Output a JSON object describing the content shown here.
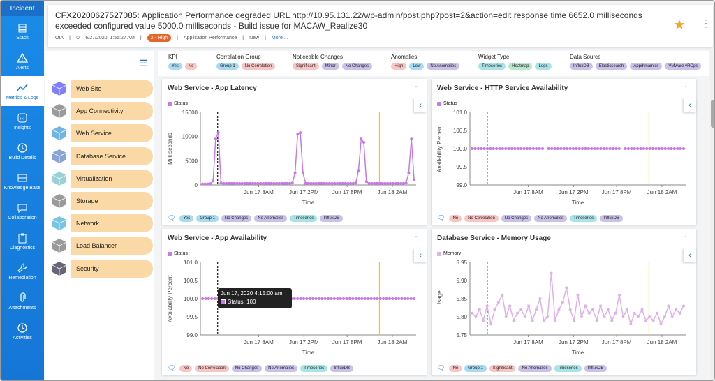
{
  "sidebar": {
    "header": "Incident",
    "items": [
      {
        "label": "Stack",
        "icon": "stack-icon",
        "active": false
      },
      {
        "label": "Alerts",
        "icon": "alert-icon",
        "active": false
      },
      {
        "label": "Metrics & Logs",
        "icon": "metrics-icon",
        "active": true
      },
      {
        "label": "Insights",
        "icon": "insights-icon",
        "active": false
      },
      {
        "label": "Build Details",
        "icon": "history-icon",
        "active": false
      },
      {
        "label": "Knowledge Base",
        "icon": "knowledge-icon",
        "active": false
      },
      {
        "label": "Collaboration",
        "icon": "chat-icon",
        "active": false
      },
      {
        "label": "Diagnostics",
        "icon": "clipboard-icon",
        "active": false
      },
      {
        "label": "Remediation",
        "icon": "wrench-icon",
        "active": false
      },
      {
        "label": "Attachments",
        "icon": "paperclip-icon",
        "active": false
      },
      {
        "label": "Activities",
        "icon": "clock-icon",
        "active": false
      }
    ]
  },
  "incident": {
    "id": "CFX20200627527085:",
    "title": "Application Performance degraded URL http://10.95.131.22/wp-admin/post.php?post=2&action=edit response time 6652.0 milliseconds exceeded configured value 5000.0 milliseconds - Build issue for MACAW_Realize30",
    "source": "OIA",
    "date": "6/27/2020, 1:55:27 AM",
    "severity": "2 - High",
    "category": "Application Performance",
    "status": "New",
    "more": "More ..."
  },
  "categories": [
    {
      "label": "Web Site"
    },
    {
      "label": "App Connectivity"
    },
    {
      "label": "Web Service"
    },
    {
      "label": "Database Service"
    },
    {
      "label": "Virtualization"
    },
    {
      "label": "Storage"
    },
    {
      "label": "Network"
    },
    {
      "label": "Load Balancer"
    },
    {
      "label": "Security"
    }
  ],
  "filters": [
    {
      "title": "KPI",
      "chips": [
        {
          "t": "Yes",
          "c": "c-blue"
        },
        {
          "t": "No",
          "c": "c-pink"
        }
      ]
    },
    {
      "title": "Correlation Group",
      "chips": [
        {
          "t": "Group 1",
          "c": "c-blue"
        },
        {
          "t": "No Correlation",
          "c": "c-pink"
        }
      ]
    },
    {
      "title": "Noticeable Changes",
      "chips": [
        {
          "t": "Significant",
          "c": "c-pink"
        },
        {
          "t": "Minor",
          "c": "c-purple"
        },
        {
          "t": "No Changes",
          "c": "c-purple"
        }
      ]
    },
    {
      "title": "Anomalies",
      "chips": [
        {
          "t": "High",
          "c": "c-pink"
        },
        {
          "t": "Low",
          "c": "c-blue"
        },
        {
          "t": "No Anomalies",
          "c": "c-purple"
        }
      ]
    },
    {
      "title": "Widget Type",
      "chips": [
        {
          "t": "Timeseries",
          "c": "c-teal"
        },
        {
          "t": "Heatmap",
          "c": "c-green"
        },
        {
          "t": "Logs",
          "c": "c-teal"
        }
      ]
    },
    {
      "title": "Data Source",
      "chips": [
        {
          "t": "InfluxDB",
          "c": "c-purple"
        },
        {
          "t": "Elasticsearch",
          "c": "c-purple"
        },
        {
          "t": "Appdynamics",
          "c": "c-purple"
        },
        {
          "t": "VMware vROps",
          "c": "c-purple"
        }
      ]
    }
  ],
  "chart_data": [
    {
      "type": "line",
      "title": "Web Service - App Latency",
      "series": [
        {
          "name": "Status",
          "color": "#c67ae6",
          "values": [
            200,
            200,
            200,
            250,
            800,
            9500,
            10800,
            400,
            300,
            300,
            300,
            300,
            300,
            300,
            300,
            300,
            300,
            300,
            300,
            300,
            300,
            300,
            300,
            300,
            300,
            300,
            300,
            300,
            300,
            300,
            300,
            300,
            300,
            300,
            400,
            2500,
            10500,
            10800,
            2500,
            300,
            300,
            300,
            300,
            300,
            300,
            300,
            300,
            300,
            300,
            300,
            300,
            300,
            300,
            300,
            300,
            300,
            300,
            300,
            400,
            3000,
            9500,
            8800,
            700,
            300,
            300,
            300,
            300,
            300,
            300,
            300,
            300,
            300,
            300,
            300,
            300,
            300,
            300,
            400,
            2500,
            9500,
            1100
          ]
        }
      ],
      "ylabel": "Milli seconds",
      "xlabel": "Time",
      "yticks": [
        "15000",
        "10000",
        "5000",
        "0"
      ],
      "ylim": [
        0,
        15000
      ],
      "xticks": [
        "Jun 17 8AM",
        "Jun 17 2PM",
        "Jun 17 8PM",
        "Jun 18 2AM"
      ],
      "tags": [
        {
          "t": "Yes",
          "c": "c-blue"
        },
        {
          "t": "Group 1",
          "c": "c-blue"
        },
        {
          "t": "No Changes",
          "c": "c-purple"
        },
        {
          "t": "No Anomalies",
          "c": "c-purple"
        },
        {
          "t": "Timeseries",
          "c": "c-teal"
        },
        {
          "t": "InfluxDB",
          "c": "c-purple"
        }
      ]
    },
    {
      "type": "line",
      "title": "Web Service - HTTP Service Availability",
      "series": [
        {
          "name": "Status",
          "color": "#c67ae6",
          "values": [
            100,
            100,
            100,
            100,
            100,
            100,
            100,
            100,
            100,
            100,
            100,
            100,
            100,
            100,
            100,
            100,
            100,
            100,
            100,
            100,
            100,
            100,
            100,
            100,
            null,
            100,
            100,
            100,
            100,
            100,
            100,
            100,
            100,
            100,
            100,
            100,
            100,
            100,
            100,
            100,
            100,
            100,
            100,
            100,
            100,
            100,
            100,
            100,
            100,
            null,
            100,
            100,
            100,
            100,
            100,
            100,
            100,
            100,
            100,
            100,
            100,
            100,
            100,
            100,
            100,
            100,
            100,
            100,
            100,
            100
          ]
        }
      ],
      "ylabel": "Availability Percent",
      "xlabel": "Time",
      "yticks": [
        "101.0",
        "100.5",
        "100.0",
        "99.5",
        "99.0"
      ],
      "ylim": [
        99,
        101
      ],
      "xticks": [
        "Jun 17 8AM",
        "Jun 17 2PM",
        "Jun 17 8PM",
        "Jun 18 2AM"
      ],
      "tags": [
        {
          "t": "No",
          "c": "c-pink"
        },
        {
          "t": "No Correlation",
          "c": "c-pink"
        },
        {
          "t": "No Changes",
          "c": "c-purple"
        },
        {
          "t": "No Anomalies",
          "c": "c-purple"
        },
        {
          "t": "Timeseries",
          "c": "c-teal"
        },
        {
          "t": "InfluxDB",
          "c": "c-purple"
        }
      ]
    },
    {
      "type": "line",
      "title": "Web Service - App Availability",
      "series": [
        {
          "name": "Status",
          "color": "#c67ae6",
          "values": [
            100,
            100,
            100,
            100,
            100,
            100,
            100,
            100,
            100,
            100,
            100,
            100,
            100,
            100,
            100,
            100,
            100,
            100,
            100,
            100,
            100,
            100,
            100,
            100,
            100,
            100,
            100,
            100,
            100,
            100,
            100,
            100,
            100,
            100,
            100,
            100,
            100,
            100,
            100,
            100,
            100,
            100,
            100,
            100,
            100,
            100,
            100,
            100,
            100,
            100,
            100,
            100,
            100,
            100,
            100,
            100,
            100,
            100,
            100,
            100,
            100,
            100,
            100,
            100,
            100,
            100,
            100,
            100,
            100,
            100
          ]
        }
      ],
      "ylabel": "Availability Percent",
      "xlabel": "Time",
      "yticks": [
        "101.0",
        "100.5",
        "100.0",
        "99.5",
        "99.0"
      ],
      "ylim": [
        99,
        101
      ],
      "xticks": [
        "Jun 17 8AM",
        "Jun 17 2PM",
        "Jun 17 8PM",
        "Jun 18 2AM"
      ],
      "tooltip": {
        "time": "Jun 17, 2020 4:15:00 am",
        "label": "Status: 100"
      },
      "tags": [
        {
          "t": "No",
          "c": "c-pink"
        },
        {
          "t": "No Correlation",
          "c": "c-pink"
        },
        {
          "t": "No Changes",
          "c": "c-purple"
        },
        {
          "t": "No Anomalies",
          "c": "c-purple"
        },
        {
          "t": "Timeseries",
          "c": "c-teal"
        },
        {
          "t": "InfluxDB",
          "c": "c-purple"
        }
      ]
    },
    {
      "type": "line",
      "title": "Database Service - Memory Usage",
      "series": [
        {
          "name": "Memory",
          "color": "#e0b0ea",
          "values": [
            5.81,
            5.8,
            5.82,
            5.79,
            5.83,
            5.78,
            5.82,
            5.84,
            5.86,
            5.8,
            5.83,
            5.79,
            5.81,
            5.82,
            5.8,
            5.83,
            5.79,
            5.82,
            5.85,
            5.79,
            5.8,
            5.92,
            5.79,
            5.82,
            5.84,
            5.88,
            5.82,
            5.79,
            5.86,
            5.8,
            5.83,
            5.81,
            5.82,
            5.79,
            5.83,
            5.8,
            5.82,
            5.79,
            5.81,
            5.86,
            5.8,
            5.82,
            5.78,
            5.81,
            5.8,
            5.82,
            5.79,
            5.8,
            5.79,
            5.81,
            5.78,
            5.8,
            5.83,
            5.8,
            5.82,
            5.81,
            5.83
          ]
        }
      ],
      "ylabel": "Usage",
      "xlabel": "Time",
      "yticks": [
        "5.95",
        "5.90",
        "5.85",
        "5.80",
        "5.75"
      ],
      "ylim": [
        5.75,
        5.95
      ],
      "xticks": [
        "Jun 17 8AM",
        "Jun 17 2PM",
        "Jun 17 8PM",
        "Jun 18 2AM"
      ],
      "tags": [
        {
          "t": "No",
          "c": "c-pink"
        },
        {
          "t": "Group 1",
          "c": "c-blue"
        },
        {
          "t": "Significant",
          "c": "c-pink"
        },
        {
          "t": "No Anomalies",
          "c": "c-purple"
        },
        {
          "t": "Timeseries",
          "c": "c-teal"
        },
        {
          "t": "InfluxDB",
          "c": "c-purple"
        }
      ]
    }
  ]
}
